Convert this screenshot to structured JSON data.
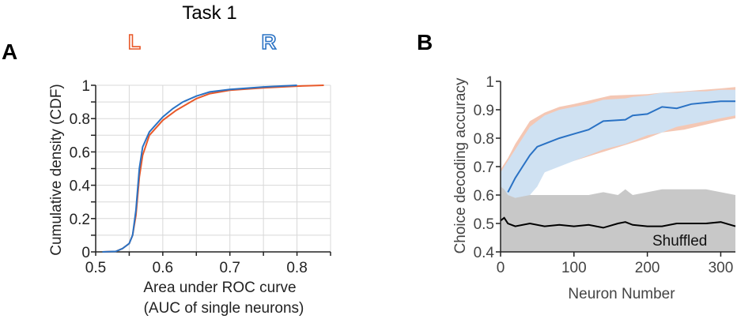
{
  "chart_data": [
    {
      "panel": "A",
      "type": "line",
      "title": "Task 1",
      "xlabel": "Area under ROC curve",
      "xlabel2": "(AUC of single neurons)",
      "ylabel": "Cumulative density (CDF)",
      "xlim": [
        0.5,
        0.85
      ],
      "ylim": [
        0,
        1
      ],
      "xticks": [
        "0.5",
        "0.6",
        "0.7",
        "0.8"
      ],
      "yticks": [
        "0",
        "0.2",
        "0.4",
        "0.6",
        "0.8",
        "1"
      ],
      "grid": true,
      "legend": [
        {
          "label": "L",
          "color": "#e8592a"
        },
        {
          "label": "R",
          "color": "#2a72c4"
        }
      ],
      "series": [
        {
          "name": "L",
          "color": "#e8592a",
          "x": [
            0.51,
            0.53,
            0.54,
            0.55,
            0.555,
            0.56,
            0.565,
            0.57,
            0.58,
            0.6,
            0.62,
            0.65,
            0.67,
            0.7,
            0.75,
            0.8,
            0.84
          ],
          "y": [
            0,
            0.003,
            0.02,
            0.05,
            0.1,
            0.22,
            0.45,
            0.58,
            0.7,
            0.79,
            0.85,
            0.92,
            0.95,
            0.97,
            0.985,
            0.995,
            1.0
          ]
        },
        {
          "name": "R",
          "color": "#2a72c4",
          "x": [
            0.51,
            0.53,
            0.54,
            0.55,
            0.555,
            0.56,
            0.565,
            0.57,
            0.58,
            0.6,
            0.615,
            0.63,
            0.65,
            0.67,
            0.7,
            0.75,
            0.8
          ],
          "y": [
            0,
            0.003,
            0.02,
            0.05,
            0.1,
            0.25,
            0.5,
            0.63,
            0.72,
            0.81,
            0.86,
            0.9,
            0.935,
            0.96,
            0.975,
            0.99,
            1.0
          ]
        }
      ]
    },
    {
      "panel": "B",
      "type": "area",
      "xlabel": "Neuron Number",
      "ylabel": "Choice decoding accuracy",
      "xlim": [
        0,
        320
      ],
      "ylim": [
        0.4,
        1
      ],
      "xticks": [
        "0",
        "100",
        "200",
        "300"
      ],
      "yticks": [
        "0.4",
        "0.5",
        "0.6",
        "0.7",
        "0.8",
        "0.9",
        "1"
      ],
      "annotation": "Shuffled",
      "series": [
        {
          "name": "L",
          "color": "#f4c7b4",
          "x": [
            0,
            10,
            20,
            40,
            60,
            80,
            100,
            150,
            200,
            220,
            250,
            300,
            320
          ],
          "upper": [
            0.69,
            0.73,
            0.78,
            0.86,
            0.89,
            0.91,
            0.92,
            0.95,
            0.955,
            0.96,
            0.965,
            0.975,
            0.98
          ],
          "lower": [
            0.62,
            0.6,
            0.59,
            0.6,
            0.68,
            0.71,
            0.72,
            0.76,
            0.8,
            0.82,
            0.83,
            0.86,
            0.87
          ]
        },
        {
          "name": "R",
          "color": "#2a72c4",
          "band_color": "#cfe1f2",
          "x": [
            0,
            10,
            20,
            30,
            40,
            50,
            60,
            80,
            100,
            120,
            140,
            170,
            180,
            200,
            220,
            240,
            260,
            280,
            300,
            320
          ],
          "mean": [
            null,
            0.61,
            0.66,
            0.7,
            0.74,
            0.77,
            0.78,
            0.8,
            0.815,
            0.83,
            0.86,
            0.865,
            0.88,
            0.885,
            0.91,
            0.905,
            0.92,
            0.925,
            0.93,
            0.93
          ],
          "upper": [
            0.68,
            0.72,
            0.76,
            0.8,
            0.84,
            0.86,
            0.88,
            0.9,
            0.91,
            0.92,
            0.935,
            0.94,
            0.945,
            0.95,
            0.96,
            0.96,
            0.965,
            0.965,
            0.97,
            0.97
          ],
          "lower": [
            0.62,
            0.6,
            0.59,
            0.59,
            0.6,
            0.63,
            0.68,
            0.7,
            0.72,
            0.74,
            0.76,
            0.78,
            0.79,
            0.81,
            0.82,
            0.84,
            0.85,
            0.86,
            0.87,
            0.88
          ]
        },
        {
          "name": "Shuffled",
          "color": "#000000",
          "band_color": "#c8c8c8",
          "x": [
            0,
            5,
            10,
            20,
            40,
            60,
            80,
            100,
            120,
            140,
            160,
            170,
            180,
            200,
            220,
            240,
            260,
            280,
            300,
            320
          ],
          "mean": [
            0.51,
            0.52,
            0.5,
            0.49,
            0.5,
            0.49,
            0.495,
            0.49,
            0.495,
            0.485,
            0.5,
            0.505,
            0.495,
            0.49,
            0.49,
            0.5,
            0.5,
            0.5,
            0.505,
            0.49
          ],
          "upper": [
            0.63,
            0.62,
            0.6,
            0.59,
            0.6,
            0.6,
            0.6,
            0.6,
            0.6,
            0.61,
            0.6,
            0.62,
            0.6,
            0.61,
            0.62,
            0.62,
            0.62,
            0.62,
            0.61,
            0.6
          ],
          "lower": [
            0.4,
            0.4,
            0.4,
            0.4,
            0.4,
            0.4,
            0.4,
            0.4,
            0.4,
            0.4,
            0.4,
            0.4,
            0.4,
            0.4,
            0.4,
            0.4,
            0.4,
            0.4,
            0.4,
            0.4
          ]
        }
      ]
    }
  ]
}
